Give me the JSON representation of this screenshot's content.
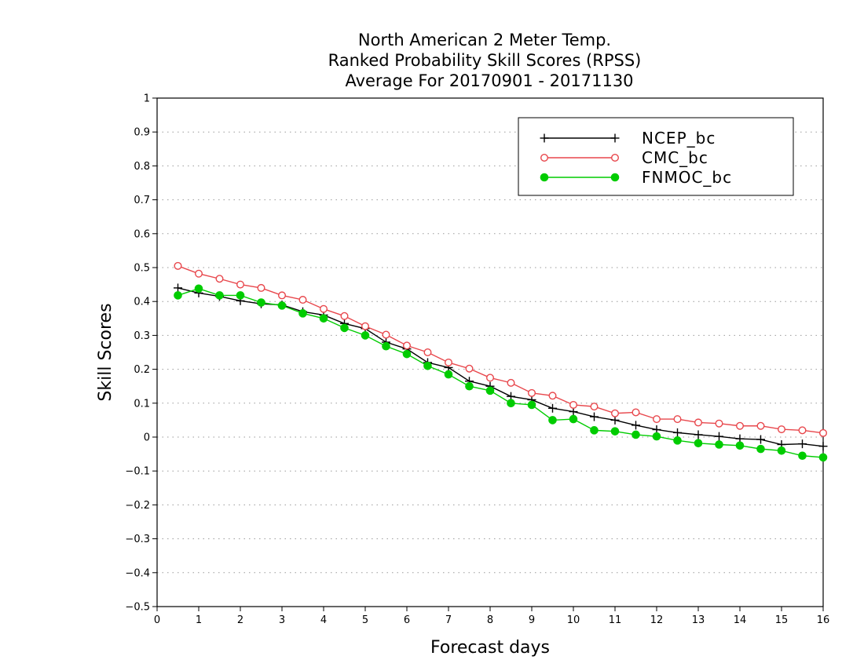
{
  "chart_data": {
    "type": "line",
    "title": [
      "North American 2 Meter Temp.",
      "Ranked Probability Skill Scores (RPSS)",
      "Average For 20170901 - 20171130"
    ],
    "xlabel": "Forecast days",
    "ylabel": "Skill Scores",
    "xlim": [
      0,
      16
    ],
    "ylim": [
      -0.5,
      1
    ],
    "xticks": [
      "0",
      "1",
      "2",
      "3",
      "4",
      "5",
      "6",
      "7",
      "8",
      "9",
      "10",
      "11",
      "12",
      "13",
      "14",
      "15",
      "16"
    ],
    "yticks": [
      "1",
      "0.9",
      "0.8",
      "0.7",
      "0.6",
      "0.5",
      "0.4",
      "0.3",
      "0.2",
      "0.1",
      "0",
      "−0.1",
      "−0.2",
      "−0.3",
      "−0.4",
      "−0.5"
    ],
    "grid": "horizontal-dotted",
    "legend_position": "top-right",
    "x": [
      0.5,
      1,
      1.5,
      2,
      2.5,
      3,
      3.5,
      4,
      4.5,
      5,
      5.5,
      6,
      6.5,
      7,
      7.5,
      8,
      8.5,
      9,
      9.5,
      10,
      10.5,
      11,
      11.5,
      12,
      12.5,
      13,
      13.5,
      14,
      14.5,
      15,
      15.5,
      16
    ],
    "series": [
      {
        "name": "NCEP_bc",
        "color": "#000000",
        "marker": "plus",
        "values": [
          0.44,
          0.425,
          0.415,
          0.402,
          0.393,
          0.39,
          0.37,
          0.36,
          0.335,
          0.32,
          0.28,
          0.26,
          0.22,
          0.205,
          0.165,
          0.15,
          0.12,
          0.11,
          0.085,
          0.075,
          0.06,
          0.05,
          0.035,
          0.022,
          0.013,
          0.007,
          0.002,
          -0.005,
          -0.007,
          -0.022,
          -0.02,
          -0.027
        ]
      },
      {
        "name": "CMC_bc",
        "color": "#e8474c",
        "marker": "open-circle",
        "values": [
          0.505,
          0.482,
          0.467,
          0.45,
          0.44,
          0.418,
          0.405,
          0.378,
          0.357,
          0.327,
          0.302,
          0.27,
          0.25,
          0.22,
          0.202,
          0.175,
          0.16,
          0.13,
          0.122,
          0.095,
          0.09,
          0.07,
          0.073,
          0.053,
          0.053,
          0.043,
          0.04,
          0.033,
          0.033,
          0.023,
          0.02,
          0.012
        ]
      },
      {
        "name": "FNMOC_bc",
        "color": "#00cc00",
        "marker": "filled-circle",
        "values": [
          0.418,
          0.438,
          0.418,
          0.418,
          0.397,
          0.388,
          0.365,
          0.35,
          0.322,
          0.3,
          0.268,
          0.245,
          0.21,
          0.185,
          0.15,
          0.137,
          0.1,
          0.095,
          0.05,
          0.053,
          0.02,
          0.017,
          0.007,
          0.002,
          -0.01,
          -0.018,
          -0.022,
          -0.025,
          -0.035,
          -0.04,
          -0.055,
          -0.06
        ]
      }
    ]
  }
}
